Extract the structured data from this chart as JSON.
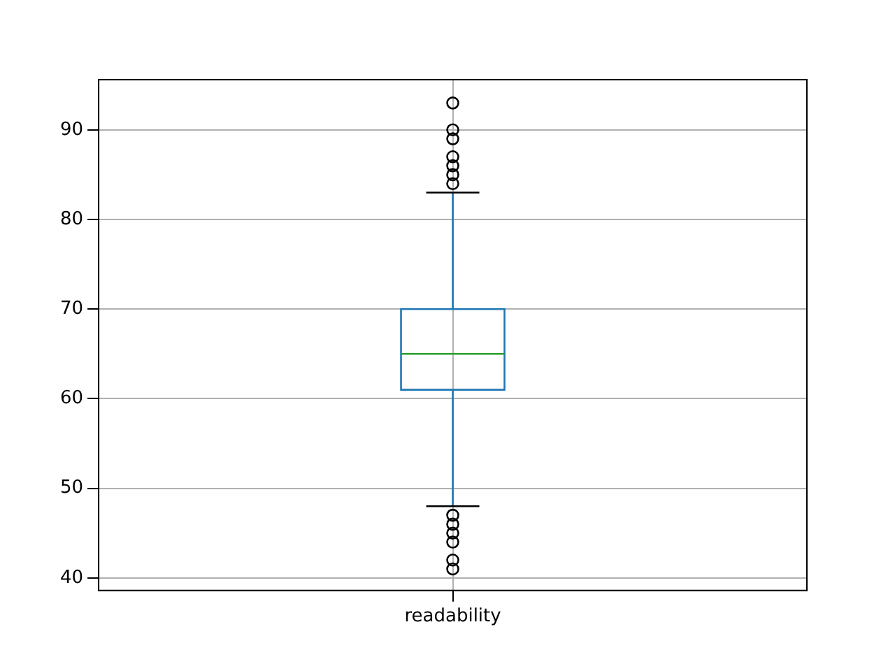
{
  "chart_data": {
    "type": "box",
    "categories": [
      "readability"
    ],
    "boxes": [
      {
        "low": 48,
        "q1": 61,
        "median": 65,
        "q3": 70,
        "high": 83,
        "outliers": [
          93,
          90,
          89,
          87,
          86,
          85,
          84,
          47,
          46,
          45,
          44,
          42,
          41
        ]
      }
    ],
    "color": "#1f77b4",
    "ylim": [
      38.6,
      95.6
    ],
    "yticks": [
      40,
      50,
      60,
      70,
      80,
      90
    ],
    "grid": true,
    "marker": "circle"
  }
}
